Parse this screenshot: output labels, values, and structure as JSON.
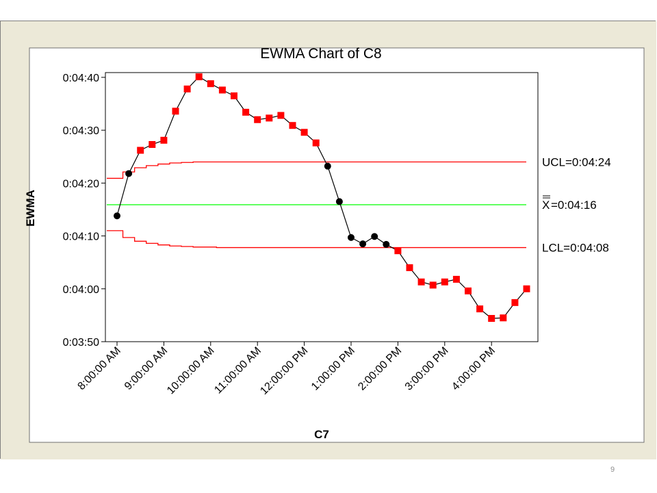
{
  "page": {
    "number": "9"
  },
  "chart_data": {
    "type": "line",
    "title": "EWMA Chart of C8",
    "xlabel": "C7",
    "ylabel": "EWMA",
    "y_unit": "seconds after 0:04:00 (tick labels printed as h:mm:ss)",
    "yticks": [
      {
        "value": -10,
        "label": "0:03:50"
      },
      {
        "value": 0,
        "label": "0:04:00"
      },
      {
        "value": 10,
        "label": "0:04:10"
      },
      {
        "value": 20,
        "label": "0:04:20"
      },
      {
        "value": 30,
        "label": "0:04:30"
      },
      {
        "value": 40,
        "label": "0:04:40"
      }
    ],
    "ylim": [
      -10,
      40.9
    ],
    "xticks": [
      {
        "index": 0,
        "label": "8:00:00 AM"
      },
      {
        "index": 4,
        "label": "9:00:00 AM"
      },
      {
        "index": 8,
        "label": "10:00:00 AM"
      },
      {
        "index": 12,
        "label": "11:00:00 AM"
      },
      {
        "index": 16,
        "label": "12:00:00 PM"
      },
      {
        "index": 20,
        "label": "1:00:00 PM"
      },
      {
        "index": 24,
        "label": "2:00:00 PM"
      },
      {
        "index": 28,
        "label": "3:00:00 PM"
      },
      {
        "index": 32,
        "label": "4:00:00 PM"
      }
    ],
    "series": [
      {
        "values": [
          13.8,
          21.8,
          26.2,
          27.3,
          28.1,
          33.6,
          37.8,
          40.1,
          38.8,
          37.6,
          36.5,
          33.4,
          32.0,
          32.3,
          32.8,
          30.9,
          29.6,
          27.6,
          23.2,
          16.5,
          9.7,
          8.5,
          9.9,
          8.4,
          7.2,
          4.0,
          1.3,
          0.7,
          1.3,
          1.8,
          -0.4,
          -3.8,
          -5.6,
          -5.5,
          -2.6,
          0.0
        ],
        "out_of_control": [
          false,
          false,
          true,
          true,
          true,
          true,
          true,
          true,
          true,
          true,
          true,
          true,
          true,
          true,
          true,
          true,
          true,
          true,
          false,
          false,
          false,
          false,
          false,
          false,
          true,
          true,
          true,
          true,
          true,
          true,
          true,
          true,
          true,
          true,
          true,
          true
        ]
      }
    ],
    "limits": {
      "ucl": {
        "label": "UCL=0:04:24",
        "value": 24.0,
        "start_values": [
          20.9,
          22.1,
          22.9,
          23.3,
          23.6,
          23.8,
          23.9
        ]
      },
      "center": {
        "label": "=0:04:16",
        "symbol": "X",
        "value": 15.9
      },
      "lcl": {
        "label": "LCL=0:04:08",
        "value": 7.8,
        "start_values": [
          11.0,
          9.7,
          9.0,
          8.6,
          8.3,
          8.1,
          8.0,
          7.9,
          7.9,
          7.8
        ]
      }
    },
    "colors": {
      "background": "#ece9d8",
      "plot_area": "#ffffff",
      "limit_line": "#ff0000",
      "center_line": "#00ff00",
      "in_control_point": "#000000",
      "out_of_control_point": "#ff0000",
      "connector": "#000000"
    },
    "grid": false,
    "legend": "none"
  }
}
